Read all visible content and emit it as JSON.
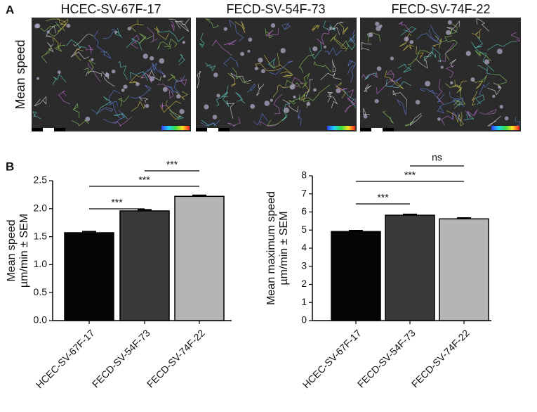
{
  "figure": {
    "panel_a": {
      "label": "A",
      "row_label": "Mean speed",
      "columns": [
        "HCEC-SV-67F-17",
        "FECD-SV-54F-73",
        "FECD-SV-74F-22"
      ]
    },
    "panel_b_label": "B"
  },
  "chart_data": [
    {
      "type": "bar",
      "categories": [
        "HCEC-SV-67F-17",
        "FECD-SV-54F-73",
        "FECD-SV-74F-22"
      ],
      "values": [
        1.57,
        1.96,
        2.22
      ],
      "errors": [
        0.02,
        0.02,
        0.02
      ],
      "colors": [
        "#050505",
        "#3a3a3a",
        "#b5b5b5"
      ],
      "ylabel": [
        "Mean speed",
        "µm/min ± SEM"
      ],
      "ylim": [
        0,
        2.5
      ],
      "yticks": [
        {
          "value": 0,
          "label": "0.0"
        },
        0.5,
        {
          "value": 1,
          "label": "1.0"
        },
        1.5,
        {
          "value": 2,
          "label": "2.0"
        },
        2.5
      ],
      "comparisons": [
        {
          "pair": [
            0,
            1
          ],
          "label": "***"
        },
        {
          "pair": [
            0,
            2
          ],
          "label": "***"
        },
        {
          "pair": [
            1,
            2
          ],
          "label": "***"
        }
      ]
    },
    {
      "type": "bar",
      "categories": [
        "HCEC-SV-67F-17",
        "FECD-SV-54F-73",
        "FECD-SV-74F-22"
      ],
      "values": [
        4.92,
        5.82,
        5.62
      ],
      "errors": [
        0.05,
        0.05,
        0.05
      ],
      "colors": [
        "#050505",
        "#3a3a3a",
        "#b5b5b5"
      ],
      "ylabel": [
        "Mean maximum speed",
        "µm/min ± SEM"
      ],
      "ylim": [
        0,
        8
      ],
      "yticks": [
        0,
        1,
        2,
        3,
        4,
        5,
        6,
        7,
        8
      ],
      "comparisons": [
        {
          "pair": [
            0,
            1
          ],
          "label": "***"
        },
        {
          "pair": [
            0,
            2
          ],
          "label": "***"
        },
        {
          "pair": [
            1,
            2
          ],
          "label": "ns"
        }
      ]
    }
  ]
}
